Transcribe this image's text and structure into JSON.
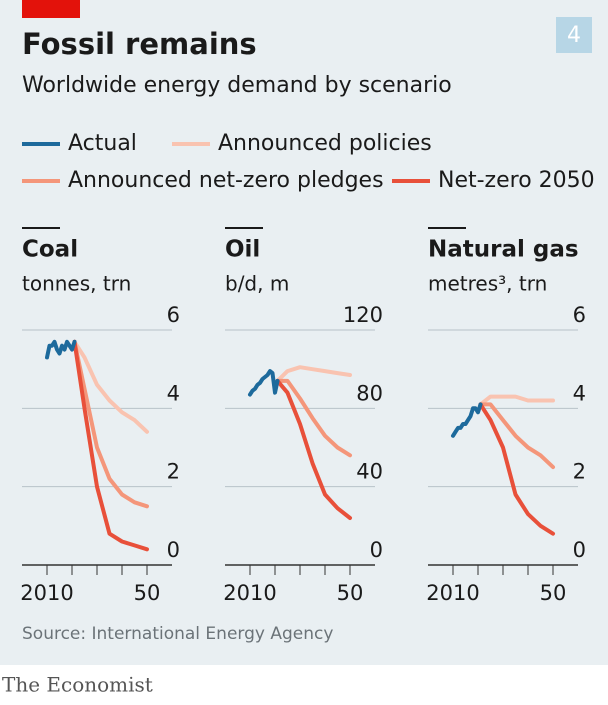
{
  "title": "Fossil remains",
  "subtitle": "Worldwide energy demand by scenario",
  "badge": "4",
  "source": "Source: International Energy Agency",
  "brand": "The Economist",
  "chart_data": [
    {
      "type": "line",
      "title": "Coal",
      "y_label": "tonnes, trn",
      "xlim": [
        2000,
        2060
      ],
      "xticks": [
        2010,
        {
          "value": 2050,
          "label": "50"
        }
      ],
      "ylim": [
        0,
        6
      ],
      "yticks": [
        0,
        2,
        4,
        6
      ],
      "grid": true,
      "series": [
        {
          "name": "Actual",
          "color": "#1d6a9c",
          "x": [
            2010,
            2011,
            2012,
            2013,
            2014,
            2015,
            2016,
            2017,
            2018,
            2019,
            2020,
            2021
          ],
          "values": [
            5.3,
            5.6,
            5.6,
            5.7,
            5.5,
            5.4,
            5.6,
            5.5,
            5.7,
            5.6,
            5.5,
            5.7
          ]
        },
        {
          "name": "Announced policies",
          "color": "#f9c3b0",
          "x": [
            2021,
            2025,
            2030,
            2035,
            2040,
            2045,
            2050
          ],
          "values": [
            5.7,
            5.3,
            4.6,
            4.2,
            3.9,
            3.7,
            3.4
          ]
        },
        {
          "name": "Announced net-zero pledges",
          "color": "#f4967a",
          "x": [
            2021,
            2025,
            2030,
            2035,
            2040,
            2045,
            2050
          ],
          "values": [
            5.7,
            4.5,
            3.0,
            2.2,
            1.8,
            1.6,
            1.5
          ]
        },
        {
          "name": "Net-zero 2050",
          "color": "#e8503a",
          "x": [
            2021,
            2025,
            2030,
            2035,
            2040,
            2045,
            2050
          ],
          "values": [
            5.7,
            4.0,
            2.0,
            0.8,
            0.6,
            0.5,
            0.4
          ]
        }
      ]
    },
    {
      "type": "line",
      "title": "Oil",
      "y_label": "b/d, m",
      "xlim": [
        2000,
        2060
      ],
      "xticks": [
        2010,
        {
          "value": 2050,
          "label": "50"
        }
      ],
      "ylim": [
        0,
        120
      ],
      "yticks": [
        0,
        40,
        80,
        120
      ],
      "grid": true,
      "series": [
        {
          "color": "#1d6a9c",
          "x": [
            2010,
            2011,
            2012,
            2013,
            2014,
            2015,
            2016,
            2017,
            2018,
            2019,
            2020,
            2021
          ],
          "values": [
            87,
            89,
            90,
            92,
            93,
            95,
            96,
            97,
            99,
            98,
            88,
            94
          ]
        },
        {
          "color": "#f9c3b0",
          "x": [
            2021,
            2025,
            2030,
            2035,
            2040,
            2045,
            2050
          ],
          "values": [
            94,
            99,
            101,
            100,
            99,
            98,
            97
          ]
        },
        {
          "color": "#f4967a",
          "x": [
            2021,
            2025,
            2030,
            2035,
            2040,
            2045,
            2050
          ],
          "values": [
            94,
            94,
            85,
            75,
            66,
            60,
            56
          ]
        },
        {
          "color": "#e8503a",
          "x": [
            2021,
            2025,
            2030,
            2035,
            2040,
            2045,
            2050
          ],
          "values": [
            94,
            88,
            72,
            52,
            36,
            29,
            24
          ]
        }
      ]
    },
    {
      "type": "line",
      "title": "Natural gas",
      "y_label": "metres³, trn",
      "xlim": [
        2000,
        2060
      ],
      "xticks": [
        2010,
        {
          "value": 2050,
          "label": "50"
        }
      ],
      "ylim": [
        0,
        6
      ],
      "yticks": [
        0,
        2,
        4,
        6
      ],
      "grid": true,
      "series": [
        {
          "color": "#1d6a9c",
          "x": [
            2010,
            2011,
            2012,
            2013,
            2014,
            2015,
            2016,
            2017,
            2018,
            2019,
            2020,
            2021
          ],
          "values": [
            3.3,
            3.4,
            3.5,
            3.5,
            3.6,
            3.6,
            3.7,
            3.8,
            4.0,
            4.0,
            3.9,
            4.1
          ]
        },
        {
          "color": "#f9c3b0",
          "x": [
            2021,
            2025,
            2030,
            2035,
            2040,
            2045,
            2050
          ],
          "values": [
            4.1,
            4.3,
            4.3,
            4.3,
            4.2,
            4.2,
            4.2
          ]
        },
        {
          "color": "#f4967a",
          "x": [
            2021,
            2025,
            2030,
            2035,
            2040,
            2045,
            2050
          ],
          "values": [
            4.1,
            4.1,
            3.7,
            3.3,
            3.0,
            2.8,
            2.5
          ]
        },
        {
          "color": "#e8503a",
          "x": [
            2021,
            2025,
            2030,
            2035,
            2040,
            2045,
            2050
          ],
          "values": [
            4.1,
            3.7,
            3.0,
            1.8,
            1.3,
            1.0,
            0.8
          ]
        }
      ]
    }
  ]
}
